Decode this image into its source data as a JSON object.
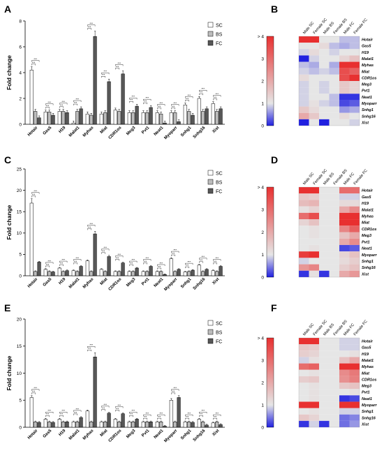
{
  "chart_data": [
    {
      "panel": "A",
      "type": "bar",
      "ylabel": "Fold change",
      "ylim": [
        0,
        8
      ],
      "yticks": [
        0,
        2,
        4,
        6,
        8
      ],
      "categories": [
        "Hotair",
        "Gas5",
        "H19",
        "Malat1",
        "Myhas",
        "Miat",
        "CDR1os",
        "Meg3",
        "Pvt1",
        "Neat1",
        "Myoparr",
        "Snhg1",
        "Snhg16",
        "Xist"
      ],
      "series": [
        {
          "name": "SC",
          "values": [
            4.2,
            0.95,
            1.0,
            0.1,
            0.8,
            0.8,
            1.1,
            0.9,
            0.9,
            0.9,
            0.9,
            1.5,
            2.0,
            1.6
          ]
        },
        {
          "name": "BS",
          "values": [
            1.0,
            0.95,
            1.0,
            1.0,
            0.7,
            0.9,
            1.0,
            0.9,
            0.9,
            0.8,
            0.9,
            1.0,
            1.0,
            1.0
          ]
        },
        {
          "name": "FC",
          "values": [
            0.5,
            0.7,
            0.9,
            1.2,
            6.8,
            3.3,
            3.9,
            1.4,
            1.3,
            0.1,
            0.2,
            0.7,
            1.2,
            1.2
          ]
        }
      ]
    },
    {
      "panel": "C",
      "type": "bar",
      "ylabel": "Fold change",
      "ylim": [
        0,
        25
      ],
      "yticks": [
        0,
        5,
        10,
        15,
        20,
        25
      ],
      "categories": [
        "Hotair",
        "Gas5",
        "H19",
        "Malat1",
        "Myhas",
        "Miat",
        "CDR1os",
        "Meg3",
        "Pvt1",
        "Neat1",
        "Myoparr",
        "Snhg1",
        "Snhg16",
        "Xist"
      ],
      "series": [
        {
          "name": "SC",
          "values": [
            17.0,
            1.5,
            1.8,
            1.2,
            3.5,
            1.5,
            1.0,
            1.0,
            1.0,
            1.0,
            4.0,
            0.9,
            2.5,
            1.2
          ]
        },
        {
          "name": "BS",
          "values": [
            1.0,
            1.0,
            1.0,
            1.0,
            1.0,
            1.0,
            1.0,
            1.0,
            1.0,
            1.0,
            1.0,
            1.0,
            1.0,
            1.0
          ]
        },
        {
          "name": "FC",
          "values": [
            3.2,
            0.9,
            1.2,
            2.2,
            9.8,
            4.5,
            3.0,
            1.8,
            2.2,
            0.3,
            1.5,
            1.3,
            1.5,
            2.2
          ]
        }
      ]
    },
    {
      "panel": "E",
      "type": "bar",
      "ylabel": "Fold change",
      "ylim": [
        0,
        20
      ],
      "yticks": [
        0,
        5,
        10,
        15,
        20
      ],
      "categories": [
        "Hotair",
        "Gas5",
        "H19",
        "Malat1",
        "Myhas",
        "Miat",
        "CDR1os",
        "Meg3",
        "Pvt1",
        "Neat1",
        "Myoparr",
        "Snhg1",
        "Snhg16",
        "Xist"
      ],
      "series": [
        {
          "name": "SC",
          "values": [
            5.5,
            1.5,
            1.5,
            1.0,
            3.0,
            1.0,
            1.5,
            1.0,
            1.0,
            1.0,
            5.0,
            1.0,
            1.5,
            0.8
          ]
        },
        {
          "name": "BS",
          "values": [
            1.0,
            1.0,
            1.0,
            1.0,
            1.0,
            1.0,
            1.0,
            1.0,
            1.0,
            1.0,
            1.0,
            1.0,
            1.0,
            1.0
          ]
        },
        {
          "name": "FC",
          "values": [
            0.9,
            0.9,
            1.0,
            1.8,
            13.0,
            2.6,
            2.5,
            1.5,
            1.0,
            0.2,
            5.5,
            0.9,
            0.4,
            0.5
          ]
        }
      ]
    },
    {
      "panel": "B",
      "type": "heatmap",
      "columns": [
        "Male SC",
        "Female SC",
        "Male BS",
        "Female BS",
        "Male FC",
        "Female FC"
      ],
      "rows": [
        "Hotair",
        "Gas5",
        "H19",
        "Malat1",
        "Myhas",
        "Miat",
        "CDR1os",
        "Meg3",
        "Pvt1",
        "Neat1",
        "Myoparr",
        "Snhg1",
        "Snhg16",
        "Xist"
      ],
      "color_scale": {
        "min": 0,
        "max": 4,
        "ticks": [
          0,
          1,
          2,
          3,
          4
        ],
        "top_tick_label": "> 4",
        "low_color": "#2020e0",
        "mid_color": "#e6e6e6",
        "high_color": "#e83030"
      },
      "values": [
        [
          4.0,
          4.0,
          1.0,
          1.0,
          0.8,
          0.8
        ],
        [
          1.0,
          1.0,
          1.2,
          0.8,
          0.7,
          0.8
        ],
        [
          0.9,
          1.2,
          1.0,
          0.9,
          1.0,
          1.0
        ],
        [
          0.0,
          0.9,
          1.0,
          1.0,
          1.3,
          1.6
        ],
        [
          0.8,
          0.7,
          1.0,
          0.7,
          4.0,
          4.0
        ],
        [
          0.9,
          0.8,
          0.9,
          0.8,
          3.5,
          3.2
        ],
        [
          1.2,
          1.0,
          1.0,
          1.0,
          3.5,
          4.0
        ],
        [
          0.9,
          1.0,
          0.9,
          1.0,
          1.5,
          1.3
        ],
        [
          0.9,
          1.0,
          0.9,
          1.0,
          1.5,
          1.3
        ],
        [
          0.9,
          1.0,
          1.0,
          0.8,
          0.1,
          0.1
        ],
        [
          0.9,
          1.1,
          0.9,
          0.8,
          0.2,
          0.3
        ],
        [
          1.5,
          1.2,
          1.0,
          1.0,
          0.6,
          0.7
        ],
        [
          2.0,
          1.5,
          1.0,
          1.0,
          1.2,
          1.0
        ],
        [
          0.0,
          1.0,
          0.0,
          1.0,
          1.0,
          0.9
        ]
      ]
    },
    {
      "panel": "D",
      "type": "heatmap",
      "columns": [
        "Male SC",
        "Female SC",
        "Male BS",
        "Female BS",
        "Male FC",
        "Female FC"
      ],
      "rows": [
        "Hotair",
        "Gas5",
        "H19",
        "Malat1",
        "Myhas",
        "Miat",
        "CDR1os",
        "Meg3",
        "Pvt1",
        "Neat1",
        "Myoparr",
        "Snhg1",
        "Snhg16",
        "Xist"
      ],
      "color_scale": {
        "min": 0,
        "max": 4,
        "ticks": [
          0,
          1,
          2,
          3,
          4
        ],
        "top_tick_label": "> 4",
        "low_color": "#2020e0",
        "mid_color": "#e6e6e6",
        "high_color": "#e83030"
      },
      "values": [
        [
          4.0,
          4.0,
          1.0,
          1.0,
          3.0,
          3.0
        ],
        [
          1.5,
          1.4,
          1.0,
          1.0,
          0.9,
          0.9
        ],
        [
          1.7,
          1.8,
          1.0,
          1.0,
          1.2,
          1.2
        ],
        [
          1.1,
          1.3,
          1.0,
          1.0,
          2.0,
          2.5
        ],
        [
          3.0,
          3.5,
          1.0,
          1.0,
          4.0,
          4.0
        ],
        [
          1.3,
          1.6,
          1.0,
          1.0,
          4.0,
          4.0
        ],
        [
          1.0,
          1.1,
          1.0,
          1.0,
          2.6,
          3.2
        ],
        [
          1.0,
          1.1,
          1.0,
          1.0,
          1.6,
          2.0
        ],
        [
          1.0,
          1.0,
          1.0,
          1.0,
          2.0,
          2.5
        ],
        [
          1.0,
          1.1,
          1.0,
          1.0,
          0.2,
          0.3
        ],
        [
          3.8,
          4.0,
          1.0,
          1.0,
          1.3,
          1.6
        ],
        [
          0.9,
          1.0,
          1.0,
          1.0,
          1.2,
          1.4
        ],
        [
          2.3,
          2.6,
          1.0,
          1.0,
          1.4,
          1.6
        ],
        [
          0.1,
          1.1,
          0.1,
          1.0,
          2.0,
          2.3
        ]
      ]
    },
    {
      "panel": "F",
      "type": "heatmap",
      "columns": [
        "Male SC",
        "Female SC",
        "Male BS",
        "Female BS",
        "Male FC",
        "Female FC"
      ],
      "rows": [
        "Hotair",
        "Gas5",
        "H19",
        "Malat1",
        "Myhas",
        "Miat",
        "CDR1os",
        "Meg3",
        "Pvt1",
        "Neat1",
        "Myoparr",
        "Snhg1",
        "Snhg16",
        "Xist"
      ],
      "color_scale": {
        "min": 0,
        "max": 4,
        "ticks": [
          0,
          1,
          2,
          3,
          4
        ],
        "top_tick_label": "> 4",
        "low_color": "#2020e0",
        "mid_color": "#e6e6e6",
        "high_color": "#e83030"
      },
      "values": [
        [
          4.0,
          4.0,
          1.0,
          1.0,
          0.9,
          0.9
        ],
        [
          1.5,
          1.4,
          1.0,
          1.0,
          0.9,
          0.9
        ],
        [
          1.4,
          1.3,
          1.0,
          1.0,
          1.0,
          1.1
        ],
        [
          0.9,
          1.1,
          1.0,
          1.0,
          1.6,
          2.0
        ],
        [
          3.0,
          3.2,
          1.0,
          1.0,
          4.0,
          4.0
        ],
        [
          1.0,
          1.1,
          1.0,
          1.0,
          2.5,
          2.8
        ],
        [
          1.4,
          1.5,
          1.0,
          1.0,
          2.4,
          2.7
        ],
        [
          1.0,
          1.1,
          1.0,
          1.0,
          1.5,
          1.6
        ],
        [
          1.0,
          1.1,
          1.0,
          1.0,
          1.0,
          1.1
        ],
        [
          1.0,
          1.1,
          1.0,
          1.0,
          0.1,
          0.2
        ],
        [
          4.0,
          4.0,
          1.0,
          1.0,
          4.0,
          4.0
        ],
        [
          1.0,
          1.1,
          1.0,
          1.0,
          0.9,
          0.9
        ],
        [
          1.5,
          1.3,
          1.0,
          1.0,
          0.4,
          0.5
        ],
        [
          0.1,
          0.9,
          0.1,
          1.0,
          0.4,
          0.6
        ]
      ]
    }
  ],
  "colors": {
    "SC": "#ffffff",
    "BS": "#bdbdbd",
    "FC": "#575757"
  },
  "sig_marker": "***"
}
